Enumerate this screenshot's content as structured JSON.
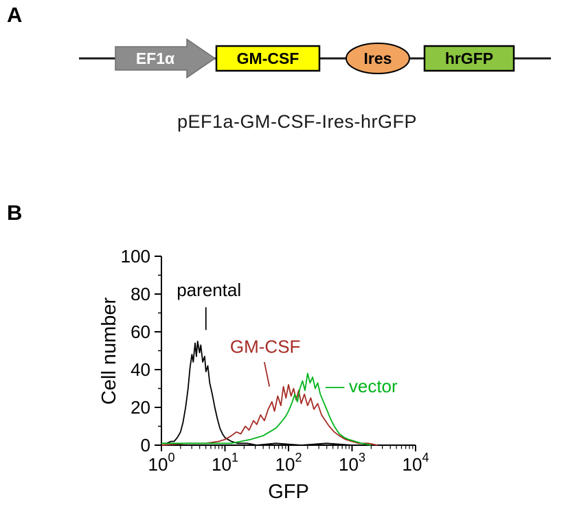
{
  "panelA": {
    "label": "A",
    "construct": {
      "promoter": "EF1α",
      "gene": "GM-CSF",
      "ires": "Ires",
      "reporter": "hrGFP",
      "caption": "pEF1a-GM-CSF-Ires-hrGFP",
      "colors": {
        "promoter": "#8c8c8c",
        "gene": "#ffff00",
        "ires": "#f2a45f",
        "reporter": "#8cc641",
        "backbone": "#1a1a1a"
      }
    }
  },
  "panelB": {
    "label": "B"
  },
  "chart_data": {
    "type": "line",
    "subtype": "flow-cytometry-histogram-overlay",
    "title": "",
    "xlabel": "GFP",
    "ylabel": "Cell number",
    "x_scale": "log10",
    "xlim_log": [
      0,
      4
    ],
    "ylim": [
      0,
      100
    ],
    "x_ticks_exponents": [
      0,
      1,
      2,
      3,
      4
    ],
    "y_ticks": [
      0,
      20,
      40,
      60,
      80,
      100
    ],
    "y_minor_ticks": [
      10,
      30,
      50,
      70,
      90
    ],
    "grid": false,
    "legend_position": "annotations-inside",
    "series": [
      {
        "name": "parental",
        "color": "#000000",
        "points": [
          [
            0.0,
            1
          ],
          [
            0.08,
            1
          ],
          [
            0.15,
            2
          ],
          [
            0.2,
            2
          ],
          [
            0.25,
            4
          ],
          [
            0.3,
            7
          ],
          [
            0.34,
            12
          ],
          [
            0.38,
            20
          ],
          [
            0.42,
            30
          ],
          [
            0.45,
            41
          ],
          [
            0.48,
            48
          ],
          [
            0.5,
            44
          ],
          [
            0.53,
            54
          ],
          [
            0.55,
            47
          ],
          [
            0.57,
            55
          ],
          [
            0.6,
            49
          ],
          [
            0.62,
            53
          ],
          [
            0.65,
            44
          ],
          [
            0.68,
            47
          ],
          [
            0.7,
            39
          ],
          [
            0.73,
            42
          ],
          [
            0.76,
            33
          ],
          [
            0.8,
            27
          ],
          [
            0.84,
            20
          ],
          [
            0.88,
            14
          ],
          [
            0.92,
            9
          ],
          [
            0.96,
            6
          ],
          [
            1.0,
            4
          ],
          [
            1.05,
            3
          ],
          [
            1.1,
            2
          ],
          [
            1.2,
            1
          ],
          [
            1.35,
            1
          ],
          [
            1.5,
            0
          ],
          [
            1.8,
            1
          ],
          [
            2.2,
            0
          ],
          [
            2.6,
            1
          ],
          [
            3.0,
            0
          ],
          [
            3.4,
            0
          ]
        ]
      },
      {
        "name": "GM-CSF",
        "color": "#a62b25",
        "points": [
          [
            0.0,
            0
          ],
          [
            0.4,
            1
          ],
          [
            0.7,
            1
          ],
          [
            0.9,
            2
          ],
          [
            1.0,
            3
          ],
          [
            1.1,
            5
          ],
          [
            1.18,
            7
          ],
          [
            1.25,
            6
          ],
          [
            1.32,
            10
          ],
          [
            1.38,
            8
          ],
          [
            1.45,
            13
          ],
          [
            1.5,
            11
          ],
          [
            1.56,
            16
          ],
          [
            1.62,
            13
          ],
          [
            1.68,
            19
          ],
          [
            1.74,
            23
          ],
          [
            1.78,
            18
          ],
          [
            1.83,
            26
          ],
          [
            1.88,
            21
          ],
          [
            1.92,
            31
          ],
          [
            1.96,
            25
          ],
          [
            2.0,
            32
          ],
          [
            2.04,
            26
          ],
          [
            2.08,
            30
          ],
          [
            2.12,
            24
          ],
          [
            2.16,
            29
          ],
          [
            2.2,
            22
          ],
          [
            2.25,
            27
          ],
          [
            2.3,
            21
          ],
          [
            2.35,
            25
          ],
          [
            2.4,
            19
          ],
          [
            2.46,
            22
          ],
          [
            2.52,
            16
          ],
          [
            2.58,
            13
          ],
          [
            2.64,
            10
          ],
          [
            2.72,
            7
          ],
          [
            2.8,
            5
          ],
          [
            2.9,
            3
          ],
          [
            3.0,
            2
          ],
          [
            3.1,
            1
          ],
          [
            3.25,
            1
          ],
          [
            3.4,
            0
          ]
        ]
      },
      {
        "name": "vector",
        "color": "#00b31a",
        "points": [
          [
            0.0,
            1
          ],
          [
            0.5,
            1
          ],
          [
            0.9,
            1
          ],
          [
            1.1,
            1
          ],
          [
            1.25,
            2
          ],
          [
            1.4,
            3
          ],
          [
            1.5,
            4
          ],
          [
            1.6,
            5
          ],
          [
            1.7,
            7
          ],
          [
            1.8,
            9
          ],
          [
            1.88,
            12
          ],
          [
            1.95,
            15
          ],
          [
            2.0,
            18
          ],
          [
            2.05,
            22
          ],
          [
            2.1,
            27
          ],
          [
            2.14,
            23
          ],
          [
            2.18,
            30
          ],
          [
            2.22,
            34
          ],
          [
            2.26,
            29
          ],
          [
            2.3,
            38
          ],
          [
            2.34,
            33
          ],
          [
            2.38,
            36
          ],
          [
            2.42,
            30
          ],
          [
            2.46,
            33
          ],
          [
            2.5,
            27
          ],
          [
            2.55,
            23
          ],
          [
            2.6,
            19
          ],
          [
            2.66,
            14
          ],
          [
            2.72,
            10
          ],
          [
            2.8,
            6
          ],
          [
            2.88,
            4
          ],
          [
            2.95,
            3
          ],
          [
            3.05,
            2
          ],
          [
            3.15,
            1
          ],
          [
            3.3,
            0
          ]
        ]
      }
    ],
    "annotations": [
      {
        "text": "parental",
        "color": "#000000",
        "text_at": [
          0.24,
          79
        ],
        "line": [
          0.7,
          73,
          0.7,
          61
        ]
      },
      {
        "text": "GM-CSF",
        "color": "#a62b25",
        "text_at": [
          1.08,
          49
        ],
        "line": [
          1.62,
          44,
          1.7,
          31
        ]
      },
      {
        "text": "vector",
        "color": "#00b31a",
        "text_at": [
          2.95,
          28
        ],
        "line": [
          2.58,
          30.5,
          2.88,
          30.5
        ]
      }
    ]
  }
}
